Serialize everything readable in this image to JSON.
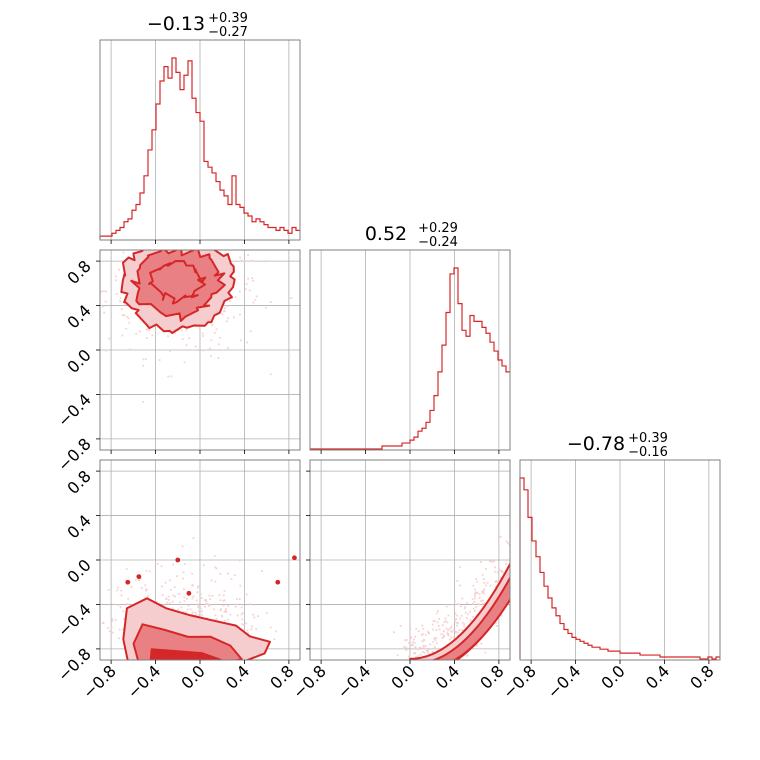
{
  "figure": {
    "type": "corner-plot"
  },
  "colors": {
    "series": "#d62728",
    "fill_inner": "#e98184",
    "fill_outer": "#f6cdce",
    "grid": "#b0b0b0",
    "axes": "#808080"
  },
  "chart_data": {
    "type": "corner",
    "parameters": 3,
    "titles": [
      {
        "median": "−0.13",
        "plus": "+0.39",
        "minus": "−0.27"
      },
      {
        "median": "0.52",
        "plus": "+0.29",
        "minus": "−0.24"
      },
      {
        "median": "−0.78",
        "plus": "+0.39",
        "minus": "−0.16"
      }
    ],
    "tick_values": [
      -0.8,
      -0.4,
      0.0,
      0.4,
      0.8
    ],
    "tick_labels": [
      "−0.8",
      "−0.4",
      "0.0",
      "0.4",
      "0.8"
    ],
    "axis_range": [
      -0.9,
      0.9
    ],
    "axis_ranges": [
      [
        -0.9,
        0.9
      ],
      [
        -0.9,
        0.9
      ],
      [
        -0.9,
        0.9
      ]
    ],
    "grid": true,
    "histograms": [
      {
        "param": 0,
        "bin_edges_range": [
          -0.9,
          0.9
        ],
        "bins": 50,
        "counts": [
          1,
          1,
          1,
          2,
          3,
          4,
          6,
          7,
          10,
          12,
          16,
          22,
          31,
          38,
          47,
          55,
          60,
          56,
          63,
          58,
          52,
          57,
          62,
          49,
          44,
          41,
          27,
          25,
          23,
          20,
          17,
          15,
          12,
          22,
          12,
          11,
          9,
          8,
          6,
          7,
          6,
          5,
          4,
          4,
          3,
          4,
          3,
          2,
          4,
          3
        ]
      },
      {
        "param": 1,
        "bin_edges_range": [
          -0.9,
          0.9
        ],
        "bins": 50,
        "counts": [
          0,
          0,
          0,
          0,
          0,
          0,
          0,
          0,
          0,
          0,
          0,
          0,
          0,
          0,
          0,
          0,
          0,
          0,
          1,
          1,
          1,
          1,
          1,
          2,
          2,
          3,
          4,
          6,
          7,
          9,
          13,
          18,
          26,
          35,
          46,
          59,
          61,
          49,
          40,
          38,
          45,
          43,
          43,
          41,
          39,
          36,
          33,
          30,
          28,
          26
        ]
      },
      {
        "param": 2,
        "bin_edges_range": [
          -0.9,
          0.9
        ],
        "bins": 50,
        "counts": [
          92,
          86,
          72,
          60,
          52,
          44,
          37,
          31,
          26,
          22,
          18,
          15,
          13,
          11,
          10,
          9,
          8,
          7,
          6,
          6,
          5,
          5,
          4,
          4,
          4,
          3,
          3,
          3,
          3,
          3,
          2,
          2,
          2,
          2,
          2,
          1,
          1,
          1,
          1,
          1,
          1,
          1,
          1,
          1,
          1,
          0,
          0,
          1,
          0,
          1
        ]
      }
    ],
    "pairs": [
      {
        "x_param": 0,
        "y_param": 1,
        "description": "2D density contours"
      },
      {
        "x_param": 0,
        "y_param": 2,
        "description": "2D density contours"
      },
      {
        "x_param": 1,
        "y_param": 2,
        "description": "2D density contours"
      }
    ]
  }
}
